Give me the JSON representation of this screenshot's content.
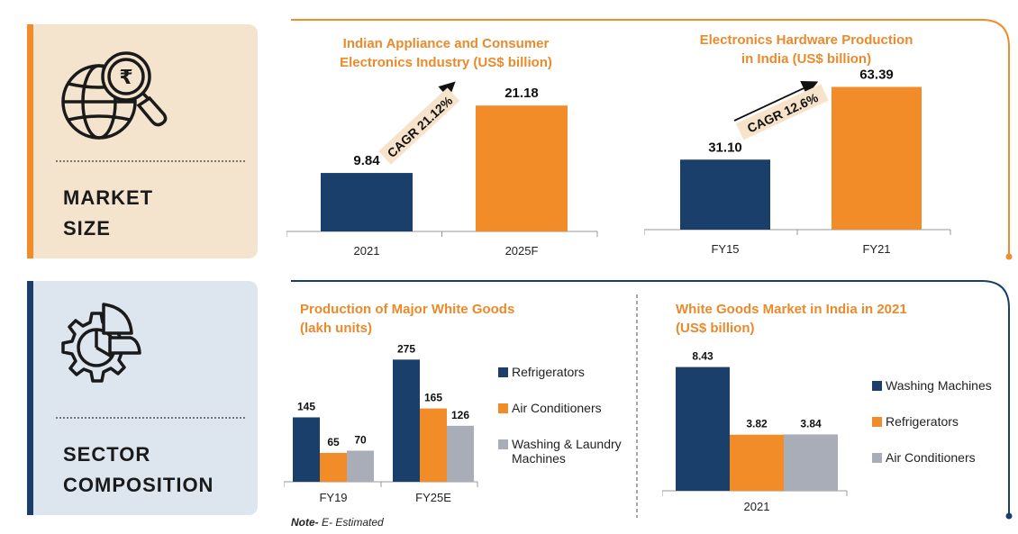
{
  "panels": {
    "market_label_line1": "MARKET",
    "market_label_line2": "SIZE",
    "sector_label_line1": "SECTOR",
    "sector_label_line2": "COMPOSITION"
  },
  "icons": [
    "globe-rupee-magnifier-icon",
    "gear-pie-chart-icon"
  ],
  "colors": {
    "navy": "#1b3f6b",
    "orange": "#f28c28",
    "gray": "#a8adb8",
    "title": "#e98a2c"
  },
  "note": {
    "prefix": "Note-",
    "text": " E- Estimated"
  },
  "chart_data": [
    {
      "type": "bar",
      "title_line1": "Indian Appliance and Consumer",
      "title_line2": "Electronics Industry (US$ billion)",
      "categories": [
        "2021",
        "2025F"
      ],
      "values": [
        9.84,
        21.18
      ],
      "labels": [
        "9.84",
        "21.18"
      ],
      "annotation": "CAGR 21.12%",
      "ylim": [
        0,
        25
      ]
    },
    {
      "type": "bar",
      "title_line1": "Electronics Hardware Production",
      "title_line2": "in India (US$ billion)",
      "categories": [
        "FY15",
        "FY21"
      ],
      "values": [
        31.1,
        63.39
      ],
      "labels": [
        "31.10",
        "63.39"
      ],
      "annotation": "CAGR 12.6%",
      "ylim": [
        0,
        70
      ]
    },
    {
      "type": "bar",
      "title_line1": "Production of Major White Goods",
      "title_line2": "(lakh units)",
      "categories": [
        "FY19",
        "FY25E"
      ],
      "series": [
        {
          "name": "Refrigerators",
          "values": [
            145,
            275
          ]
        },
        {
          "name": "Air Conditioners",
          "values": [
            65,
            165
          ]
        },
        {
          "name": "Washing & Laundry Machines",
          "values": [
            70,
            126
          ]
        }
      ],
      "legend_lines": [
        [
          "Refrigerators"
        ],
        [
          "Air Conditioners"
        ],
        [
          "Washing & Laundry",
          "Machines"
        ]
      ],
      "ylim": [
        0,
        300
      ],
      "legend": "right"
    },
    {
      "type": "bar",
      "title_line1": "White Goods Market in India in 2021",
      "title_line2": "(US$ billion)",
      "categories": [
        "2021"
      ],
      "series": [
        {
          "name": "Washing Machines",
          "values": [
            8.43
          ]
        },
        {
          "name": "Refrigerators",
          "values": [
            3.82
          ]
        },
        {
          "name": "Air Conditioners",
          "values": [
            3.84
          ]
        }
      ],
      "ylim": [
        0,
        10
      ],
      "legend": "right"
    }
  ]
}
